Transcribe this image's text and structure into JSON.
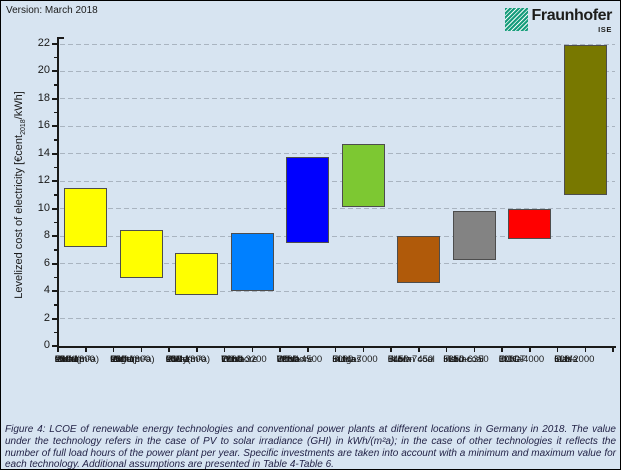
{
  "header": {
    "version_label": "Version: March 2018"
  },
  "logo": {
    "brand": "Fraunhofer",
    "institute": "ISE"
  },
  "chart_data": {
    "type": "bar",
    "subtype": "floating-range-bars",
    "title": "",
    "xlabel": "",
    "ylabel": "Levelized cost of electricity [€cent2018/kWh]",
    "ylabel_parts": {
      "prefix": "Levelized cost of electricity [€cent",
      "subscript": "2018",
      "suffix": "/kWh]"
    },
    "unit": "€cent2018/kWh",
    "ylim": [
      0,
      22
    ],
    "ytick_major_step": 2,
    "ytick_minor_step": 1,
    "grid": {
      "style": "dashed-horizontal",
      "every": 2,
      "color": "#a9b4c0"
    },
    "legend": "none",
    "bars": [
      {
        "name": "pv-rooftop-small",
        "label_lines": [
          "PV",
          "rooftop",
          "small",
          "950-1300",
          "GHI in",
          "kWh/(m²a)"
        ],
        "low": 7.23,
        "high": 11.54,
        "color": "#ffff00"
      },
      {
        "name": "pv-rooftop-large",
        "label_lines": [
          "PV",
          "rooftop",
          "large",
          "950-1300",
          "GHI in",
          "kWh/(m²a)"
        ],
        "low": 4.95,
        "high": 8.46,
        "color": "#ffff00"
      },
      {
        "name": "pv-utility-scale",
        "label_lines": [
          "PV",
          "utility-",
          "scale",
          "950-1300",
          "GHI in",
          "kWh/(m²a)"
        ],
        "low": 3.71,
        "high": 6.77,
        "color": "#ffff00"
      },
      {
        "name": "wind-onshore",
        "label_lines": [
          "Wind",
          "Onshore",
          "1800-3200",
          "FLH",
          "in h/a"
        ],
        "low": 3.99,
        "high": 8.23,
        "color": "#0080ff"
      },
      {
        "name": "wind-offshore",
        "label_lines": [
          "Wind",
          "Offshore",
          "3200-4500",
          "FLH",
          "in h/a"
        ],
        "low": 7.49,
        "high": 13.79,
        "color": "#0000ff"
      },
      {
        "name": "biogas",
        "label_lines": [
          "Biogas",
          "5000-7000",
          "FLH",
          "in h/a"
        ],
        "low": 10.14,
        "high": 14.74,
        "color": "#7dc832"
      },
      {
        "name": "brown-coal",
        "label_lines": [
          "Brown coal",
          "6450-7450",
          "FLH",
          "in h/a"
        ],
        "low": 4.59,
        "high": 7.98,
        "color": "#b05a0a"
      },
      {
        "name": "hard-coal",
        "label_lines": [
          "Hard coal",
          "5350-6350",
          "FLH",
          "in h/a"
        ],
        "low": 6.27,
        "high": 9.86,
        "color": "#838383"
      },
      {
        "name": "ccgt",
        "label_lines": [
          "CCGT",
          "3000-4000",
          "FLH",
          "in h/a"
        ],
        "low": 7.78,
        "high": 9.96,
        "color": "#ff0000"
      },
      {
        "name": "gas",
        "label_lines": [
          "Gas",
          "500-2000",
          "FLH",
          "in h/a"
        ],
        "low": 11.03,
        "high": 21.94,
        "color": "#787800"
      }
    ]
  },
  "caption": {
    "text": "Figure 4: LCOE of renewable energy technologies and conventional power plants at different locations in Germany in 2018. The value under the technology refers in the case of PV to solar irradiance (GHI) in kWh/(m²a); in the case of other technologies it reflects the number of full load hours of the power plant per year. Specific investments are taken into account with a minimum and maximum value for each technology. Additional assumptions are presented in Table 4-Table 6."
  }
}
